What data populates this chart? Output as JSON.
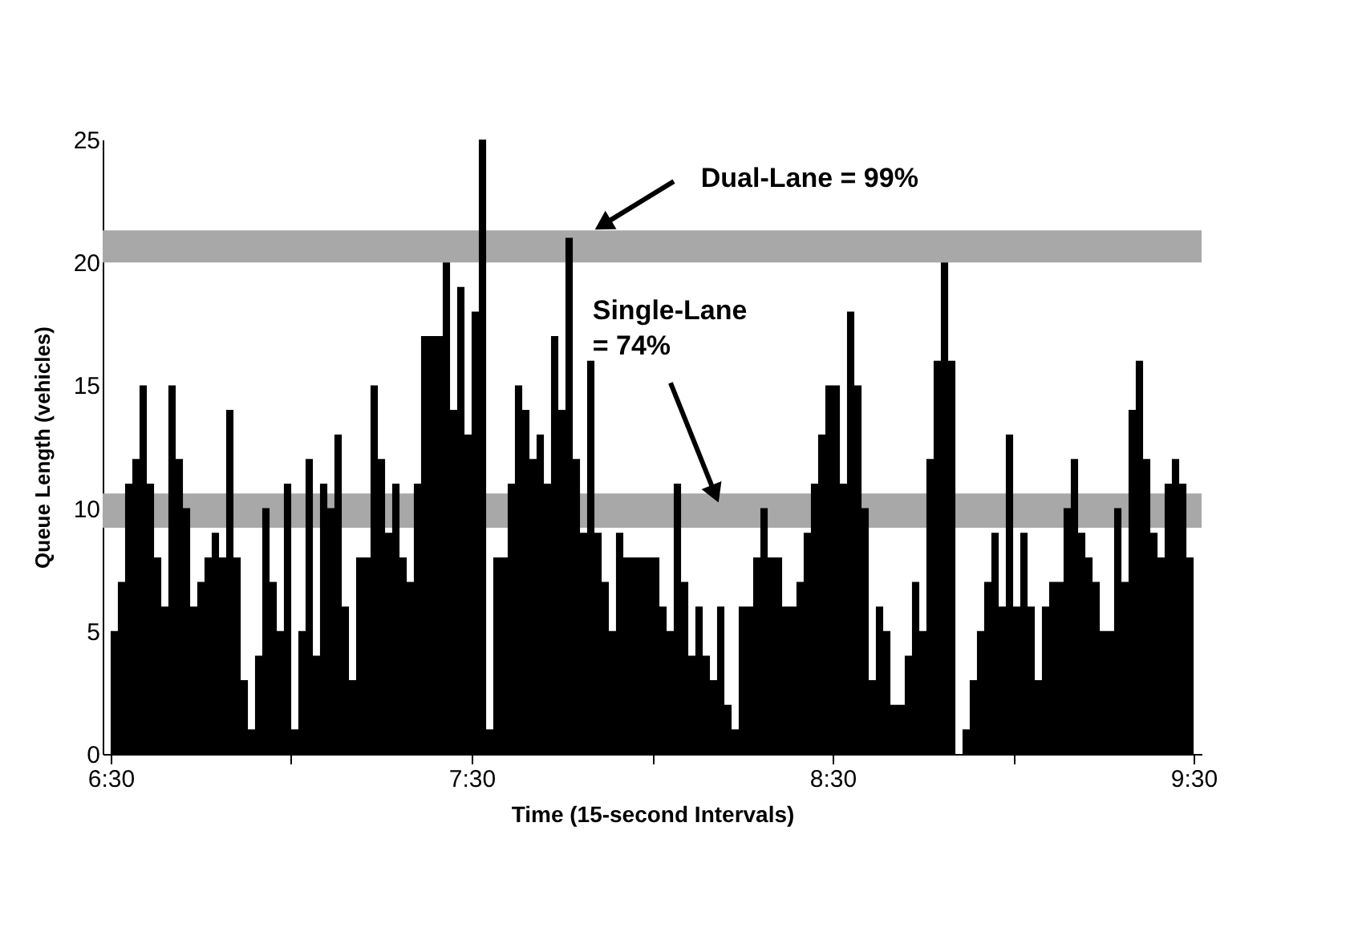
{
  "chart_data": {
    "type": "bar",
    "xlabel": "Time (15-second Intervals)",
    "ylabel": "Queue Length (vehicles)",
    "color": "#000000",
    "x": [
      6.51,
      6.53,
      6.55,
      6.57,
      6.59,
      6.61,
      6.63,
      6.65,
      6.67,
      6.69,
      6.71,
      6.73,
      6.75,
      6.77,
      6.79,
      6.81,
      6.83,
      6.85,
      6.87,
      6.89,
      6.91,
      6.93,
      6.95,
      6.97,
      6.99,
      7.01,
      7.03,
      7.05,
      7.07,
      7.09,
      7.11,
      7.13,
      7.15,
      7.17,
      7.19,
      7.21,
      7.23,
      7.25,
      7.27,
      7.29,
      7.31,
      7.33,
      7.35,
      7.37,
      7.39,
      7.41,
      7.43,
      7.45,
      7.47,
      7.49,
      7.51,
      7.53,
      7.55,
      7.57,
      7.59,
      7.61,
      7.63,
      7.65,
      7.67,
      7.69,
      7.71,
      7.73,
      7.75,
      7.77,
      7.79,
      7.81,
      7.83,
      7.85,
      7.87,
      7.89,
      7.91,
      7.93,
      7.95,
      7.97,
      7.99,
      8.01,
      8.03,
      8.05,
      8.07,
      8.09,
      8.11,
      8.13,
      8.15,
      8.17,
      8.19,
      8.21,
      8.23,
      8.25,
      8.27,
      8.29,
      8.31,
      8.33,
      8.35,
      8.37,
      8.39,
      8.41,
      8.43,
      8.45,
      8.47,
      8.49,
      8.51,
      8.53,
      8.55,
      8.57,
      8.59,
      8.61,
      8.63,
      8.65,
      8.67,
      8.69,
      8.71,
      8.73,
      8.75,
      8.77,
      8.79,
      8.81,
      8.83,
      8.85,
      8.87,
      8.89,
      8.91,
      8.93,
      8.95,
      8.97,
      8.99,
      9.01,
      9.03,
      9.05,
      9.07,
      9.09,
      9.11,
      9.13,
      9.15,
      9.17,
      9.19,
      9.21,
      9.23,
      9.25,
      9.27,
      9.29,
      9.31,
      9.33,
      9.35,
      9.37,
      9.39,
      9.41,
      9.43,
      9.45,
      9.47,
      9.49
    ],
    "values": [
      5,
      7,
      11,
      12,
      15,
      11,
      8,
      6,
      15,
      12,
      10,
      6,
      7,
      8,
      9,
      8,
      14,
      8,
      3,
      1,
      4,
      10,
      7,
      5,
      11,
      1,
      5,
      12,
      4,
      11,
      10,
      13,
      6,
      3,
      8,
      8,
      15,
      12,
      9,
      11,
      8,
      7,
      11,
      17,
      17,
      17,
      20,
      14,
      19,
      13,
      18,
      25,
      1,
      8,
      8,
      11,
      15,
      14,
      12,
      13,
      11,
      17,
      14,
      21,
      12,
      9,
      16,
      9,
      7,
      5,
      9,
      8,
      8,
      8,
      8,
      8,
      6,
      5,
      11,
      7,
      4,
      6,
      4,
      3,
      6,
      2,
      1,
      6,
      6,
      8,
      10,
      8,
      8,
      6,
      6,
      7,
      9,
      11,
      13,
      15,
      15,
      11,
      18,
      15,
      10,
      3,
      6,
      5,
      2,
      2,
      4,
      7,
      5,
      12,
      16,
      20,
      16,
      0,
      1,
      3,
      5,
      7,
      9,
      6,
      13,
      6,
      9,
      6,
      3,
      6,
      7,
      7,
      10,
      12,
      9,
      8,
      7,
      5,
      5,
      10,
      7,
      14,
      16,
      12,
      9,
      8,
      11,
      12,
      11,
      8
    ],
    "xlim": [
      6.5,
      9.5
    ],
    "xticks": [
      {
        "value": 6.5,
        "label": "6:30"
      },
      {
        "value": 7,
        "label": null
      },
      {
        "value": 7.5,
        "label": "7:30"
      },
      {
        "value": 8,
        "label": null
      },
      {
        "value": 8.5,
        "label": "8:30"
      },
      {
        "value": 9,
        "label": null
      },
      {
        "value": 9.5,
        "label": "9:30"
      }
    ],
    "ylim": [
      0,
      25
    ],
    "yticks": [
      0,
      5,
      10,
      15,
      20,
      25
    ],
    "grid": false,
    "bands": [
      {
        "axis": "y",
        "from": 20,
        "to": 21.3,
        "label": "Dual-Lane = 99%",
        "color": "#a8a8a8"
      },
      {
        "axis": "y",
        "from": 9.2,
        "to": 10.6,
        "label": "Single-Lane\n= 74%",
        "color": "#a8a8a8"
      }
    ]
  }
}
